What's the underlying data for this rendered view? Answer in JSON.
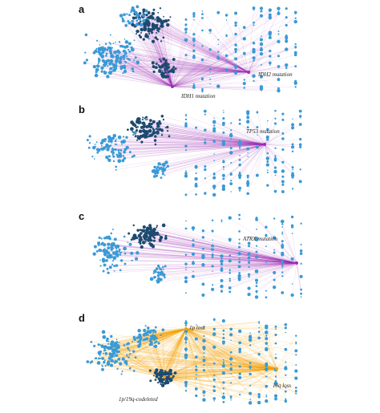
{
  "panels": [
    {
      "letter": "a",
      "labels": [
        "IDH2 mutation",
        "IDH1 mutation"
      ]
    },
    {
      "letter": "b",
      "labels": [
        "TP53 mutation"
      ]
    },
    {
      "letter": "c",
      "labels": [
        "ATRX mutation"
      ]
    },
    {
      "letter": "d",
      "labels": [
        "1p loss",
        "19q loss",
        "1p/19q-codeleted"
      ]
    }
  ]
}
